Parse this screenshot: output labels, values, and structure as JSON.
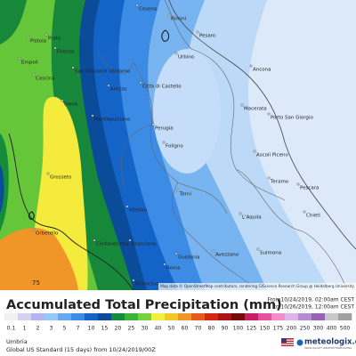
{
  "map": {
    "cities": [
      "Cesena",
      "Rimini",
      "Pesaro",
      "Urbino",
      "Prato",
      "Pistoia",
      "Firenze",
      "Empoli",
      "San Giovanni Valdarno",
      "Cascina",
      "Siena",
      "Arezzo",
      "Città di Castello",
      "Perugia",
      "Foligno",
      "Macerata",
      "Ancona",
      "Porto San Giorgio",
      "Montepulciano",
      "Grosseto",
      "Orbetello",
      "Viterbo",
      "Terni",
      "Ascoli Piceno",
      "Teramo",
      "L'Aquila",
      "Pescara",
      "Chieti",
      "Civitavecchia",
      "Bracciano",
      "Roma",
      "Guidonia",
      "Avezzano",
      "Sulmona",
      "Fiumicino"
    ],
    "contour_label": "75",
    "attribution": "Map data © OpenStreetMap contributors, rendering GIScience Research Group @ Heidelberg University"
  },
  "header": {
    "title": "Accumulated Total Precipitation (mm)",
    "from": "From10/24/2019, 02:00am CEST",
    "to": "to 10/26/2019, 12:00am CEST"
  },
  "legend": {
    "ticks": [
      0.1,
      1,
      2,
      3,
      5,
      7,
      10,
      15,
      20,
      25,
      30,
      40,
      50,
      60,
      70,
      80,
      90,
      100,
      125,
      150,
      175,
      200,
      250,
      300,
      400,
      500
    ],
    "colors": [
      "#f0f0f0",
      "#d2d2f0",
      "#b4b4f0",
      "#96c8f5",
      "#64aaf0",
      "#3c8ce6",
      "#1464c8",
      "#0a4c9a",
      "#148c3c",
      "#3cb43c",
      "#78d23c",
      "#f0f03c",
      "#f0c828",
      "#f09628",
      "#e65a1e",
      "#d22814",
      "#aa1414",
      "#780a0a",
      "#c81e64",
      "#e650a0",
      "#f08cc8",
      "#dcb4e6",
      "#b48cd2",
      "#9664b4",
      "#c8c8c8",
      "#a0a0a0"
    ]
  },
  "footer": {
    "region": "Umbria",
    "model": "Global US Standard (15 days) from 10/24/2019/00Z",
    "brand": "meteologix.com",
    "tagline": "SWISS QUALITY WEATHER FORECASTING"
  }
}
